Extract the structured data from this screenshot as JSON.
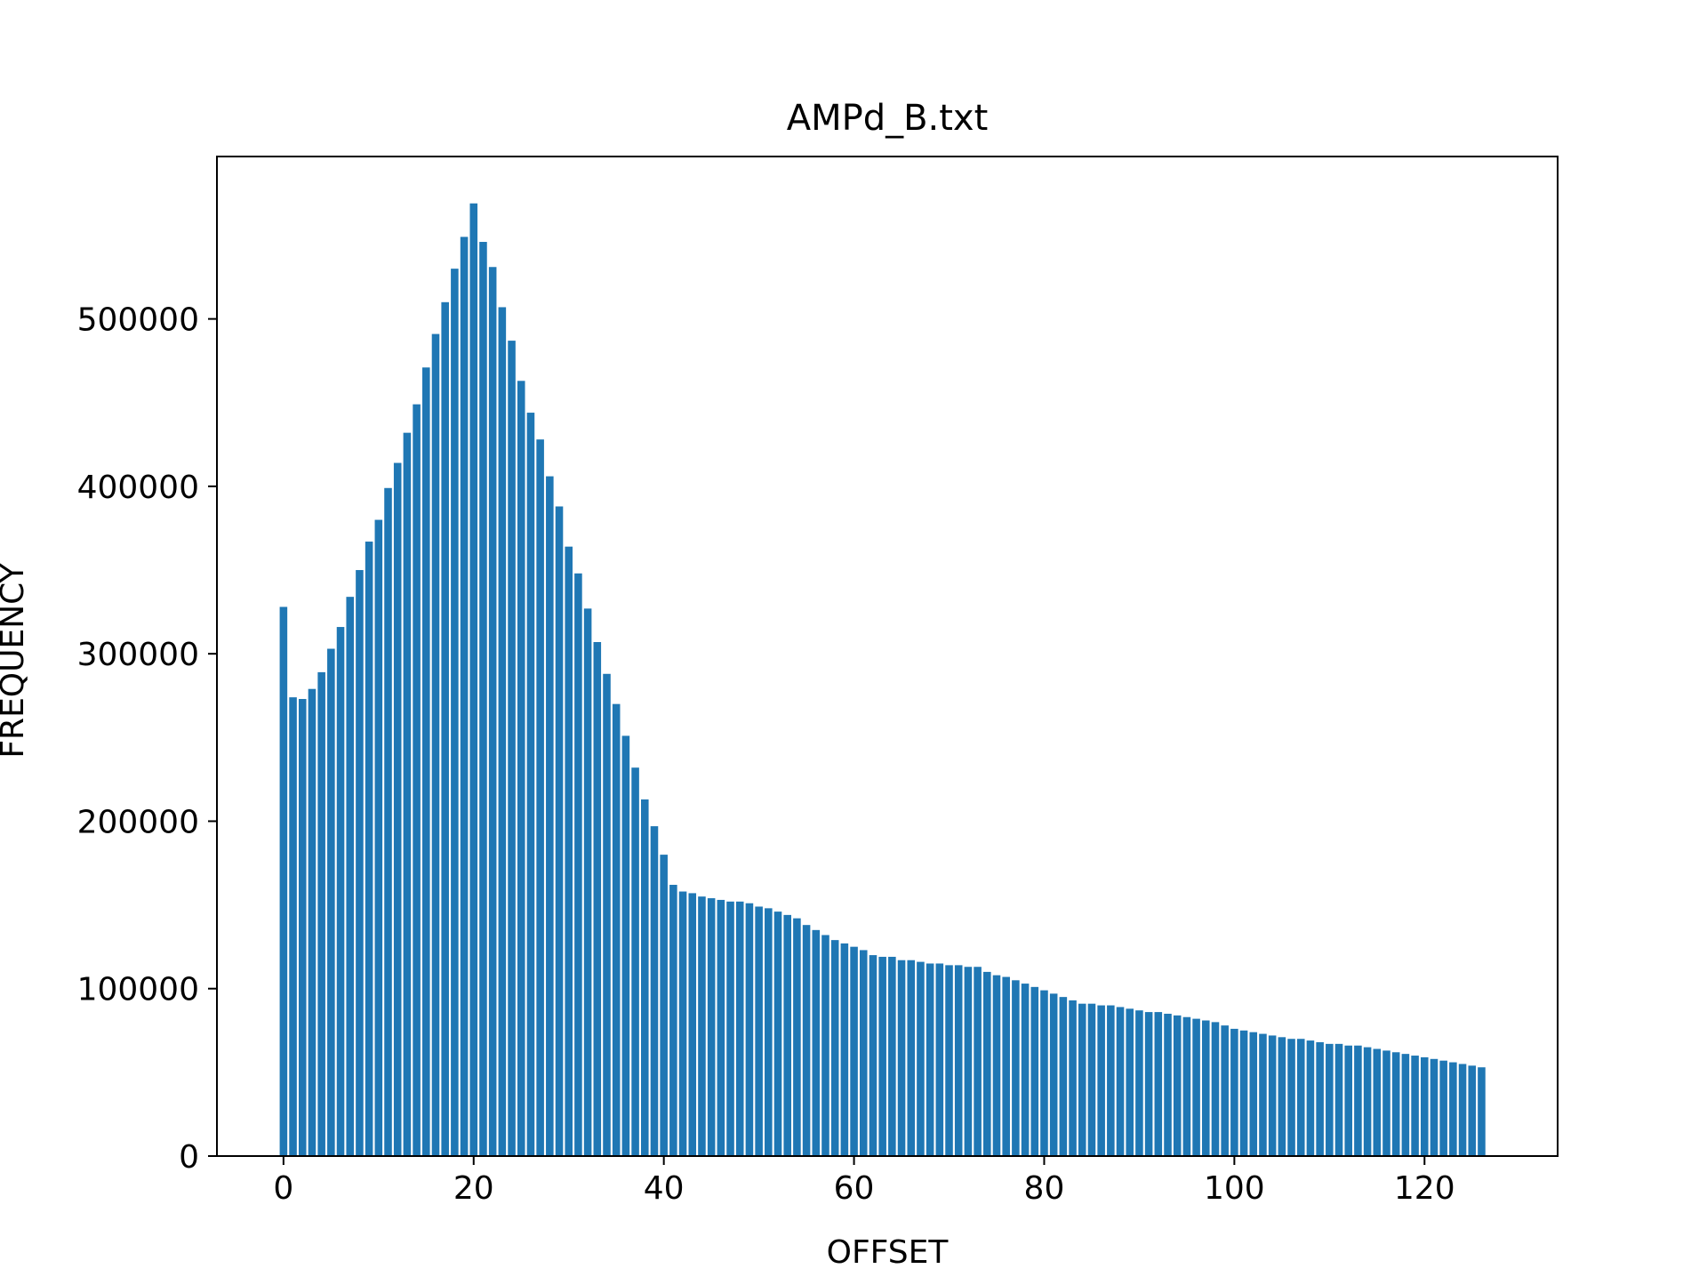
{
  "chart_data": {
    "type": "bar",
    "title": "AMPd_B.txt",
    "xlabel": "OFFSET",
    "ylabel": "FREQUENCY",
    "color": "#1f77b4",
    "xlim": [
      -7,
      134
    ],
    "ylim": [
      0,
      597000
    ],
    "xticks": [
      0,
      20,
      40,
      60,
      80,
      100,
      120
    ],
    "yticks": [
      0,
      100000,
      200000,
      300000,
      400000,
      500000
    ],
    "grid": false,
    "x": [
      0,
      1,
      2,
      3,
      4,
      5,
      6,
      7,
      8,
      9,
      10,
      11,
      12,
      13,
      14,
      15,
      16,
      17,
      18,
      19,
      20,
      21,
      22,
      23,
      24,
      25,
      26,
      27,
      28,
      29,
      30,
      31,
      32,
      33,
      34,
      35,
      36,
      37,
      38,
      39,
      40,
      41,
      42,
      43,
      44,
      45,
      46,
      47,
      48,
      49,
      50,
      51,
      52,
      53,
      54,
      55,
      56,
      57,
      58,
      59,
      60,
      61,
      62,
      63,
      64,
      65,
      66,
      67,
      68,
      69,
      70,
      71,
      72,
      73,
      74,
      75,
      76,
      77,
      78,
      79,
      80,
      81,
      82,
      83,
      84,
      85,
      86,
      87,
      88,
      89,
      90,
      91,
      92,
      93,
      94,
      95,
      96,
      97,
      98,
      99,
      100,
      101,
      102,
      103,
      104,
      105,
      106,
      107,
      108,
      109,
      110,
      111,
      112,
      113,
      114,
      115,
      116,
      117,
      118,
      119,
      120,
      121,
      122,
      123,
      124,
      125,
      126
    ],
    "values": [
      328000,
      274000,
      273000,
      279000,
      289000,
      303000,
      316000,
      334000,
      350000,
      367000,
      380000,
      399000,
      414000,
      432000,
      449000,
      471000,
      491000,
      510000,
      530000,
      549000,
      569000,
      546000,
      531000,
      507000,
      487000,
      463000,
      444000,
      428000,
      406000,
      388000,
      364000,
      348000,
      327000,
      307000,
      288000,
      270000,
      251000,
      232000,
      213000,
      197000,
      180000,
      162000,
      158000,
      157000,
      155000,
      154000,
      153000,
      152000,
      152000,
      151000,
      149000,
      148000,
      146000,
      144000,
      142000,
      138000,
      135000,
      132000,
      129000,
      127000,
      125000,
      123000,
      120000,
      119000,
      119000,
      117000,
      117000,
      116000,
      115000,
      115000,
      114000,
      114000,
      113000,
      113000,
      110000,
      108000,
      107000,
      105000,
      103000,
      101000,
      99000,
      97000,
      95000,
      93000,
      91000,
      91000,
      90000,
      90000,
      89000,
      88000,
      87000,
      86000,
      86000,
      85000,
      84000,
      83000,
      82000,
      81000,
      80000,
      78000,
      76000,
      75000,
      74000,
      73000,
      72000,
      71000,
      70000,
      70000,
      69000,
      68000,
      67000,
      67000,
      66000,
      66000,
      65000,
      64000,
      63000,
      62000,
      61000,
      60000,
      59000,
      58000,
      57000,
      56000,
      55000,
      54000,
      53000
    ]
  }
}
